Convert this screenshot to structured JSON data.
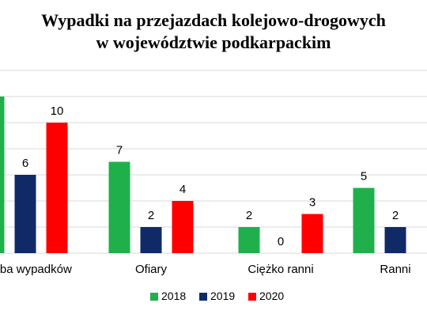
{
  "chart_data": {
    "type": "bar",
    "title_lines": [
      "Wypadki na przejazdach kolejowo-drogowych",
      "w województwie podkarpackim"
    ],
    "categories": [
      "Liczba wypadków",
      "Ofiary",
      "Ciężko ranni",
      "Ranni"
    ],
    "series": [
      {
        "name": "2018",
        "color": "#1fb04c",
        "values": [
          12,
          7,
          2,
          5
        ]
      },
      {
        "name": "2019",
        "color": "#0f2a66",
        "values": [
          6,
          2,
          0,
          2
        ]
      },
      {
        "name": "2020",
        "color": "#ff0000",
        "values": [
          10,
          4,
          3,
          null
        ]
      }
    ],
    "ylim": [
      0,
      14
    ],
    "ytick_step": 2,
    "grid": true,
    "legend": "bottom"
  }
}
